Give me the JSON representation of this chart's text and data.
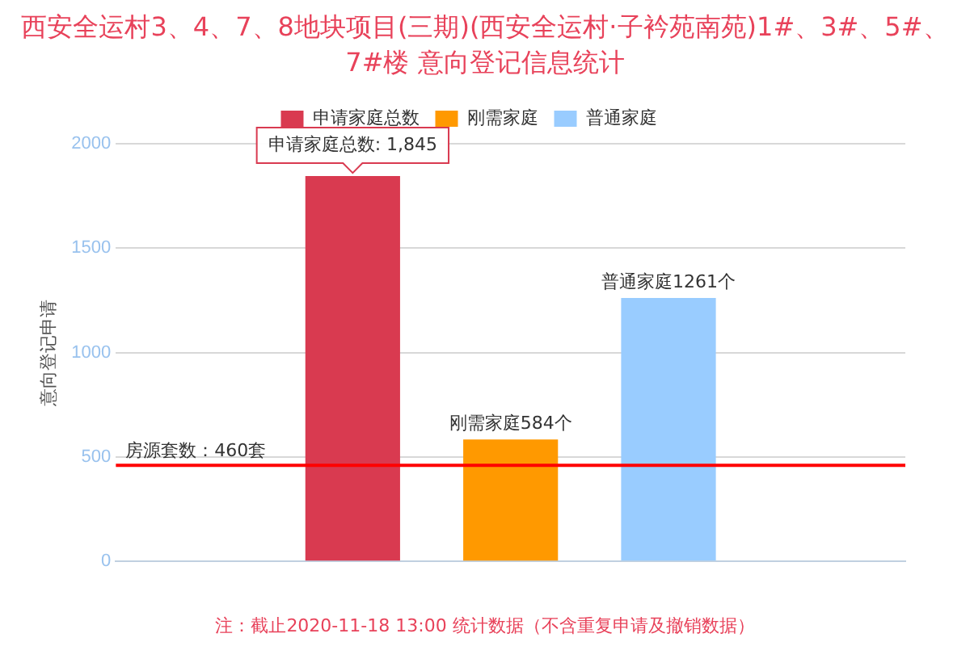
{
  "chart_data": {
    "type": "bar",
    "title": "西安全运村3、4、7、8地块项目(三期)(西安全运村·子衿苑南苑)1#、3#、5#、7#楼 意向登记信息统计",
    "ylabel": "意向登记申请",
    "categories": [
      null
    ],
    "series": [
      {
        "name": "申请家庭总数",
        "color": "#d93a50",
        "values": [
          1845
        ]
      },
      {
        "name": "刚需家庭",
        "color": "#ff9900",
        "values": [
          584
        ],
        "value_labels": [
          "刚需家庭584个"
        ]
      },
      {
        "name": "普通家庭",
        "color": "#99ccff",
        "values": [
          1261
        ],
        "value_labels": [
          "普通家庭1261个"
        ]
      }
    ],
    "ylim": [
      0,
      2000
    ],
    "yticks": [
      0,
      500,
      1000,
      1500,
      2000
    ],
    "grid": "y",
    "legend": "top",
    "ref_lines": [
      {
        "axis": "y",
        "value": 460,
        "label": "房源套数：460套",
        "color": "#ff0000"
      }
    ],
    "annotations": [
      {
        "text": "申请家庭总数: 1,845",
        "y": 1845
      },
      "注：截止2020-11-18 13:00 统计数据（不含重复申请及撤销数据）"
    ]
  }
}
